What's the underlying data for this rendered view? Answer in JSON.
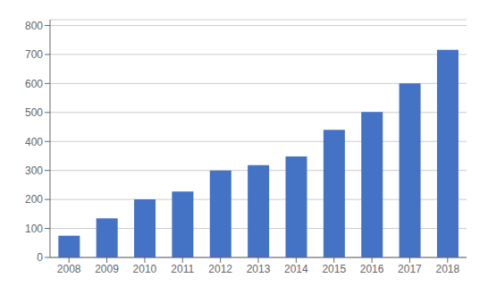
{
  "chart_data": {
    "type": "bar",
    "categories": [
      "2008",
      "2009",
      "2010",
      "2011",
      "2012",
      "2013",
      "2014",
      "2015",
      "2016",
      "2017",
      "2018"
    ],
    "values": [
      75,
      135,
      200,
      227,
      300,
      318,
      348,
      440,
      502,
      600,
      716
    ],
    "color": "#4472C4",
    "ylim": [
      0,
      820
    ],
    "yticks": [
      0,
      100,
      200,
      300,
      400,
      500,
      600,
      700,
      800
    ],
    "grid": true
  }
}
